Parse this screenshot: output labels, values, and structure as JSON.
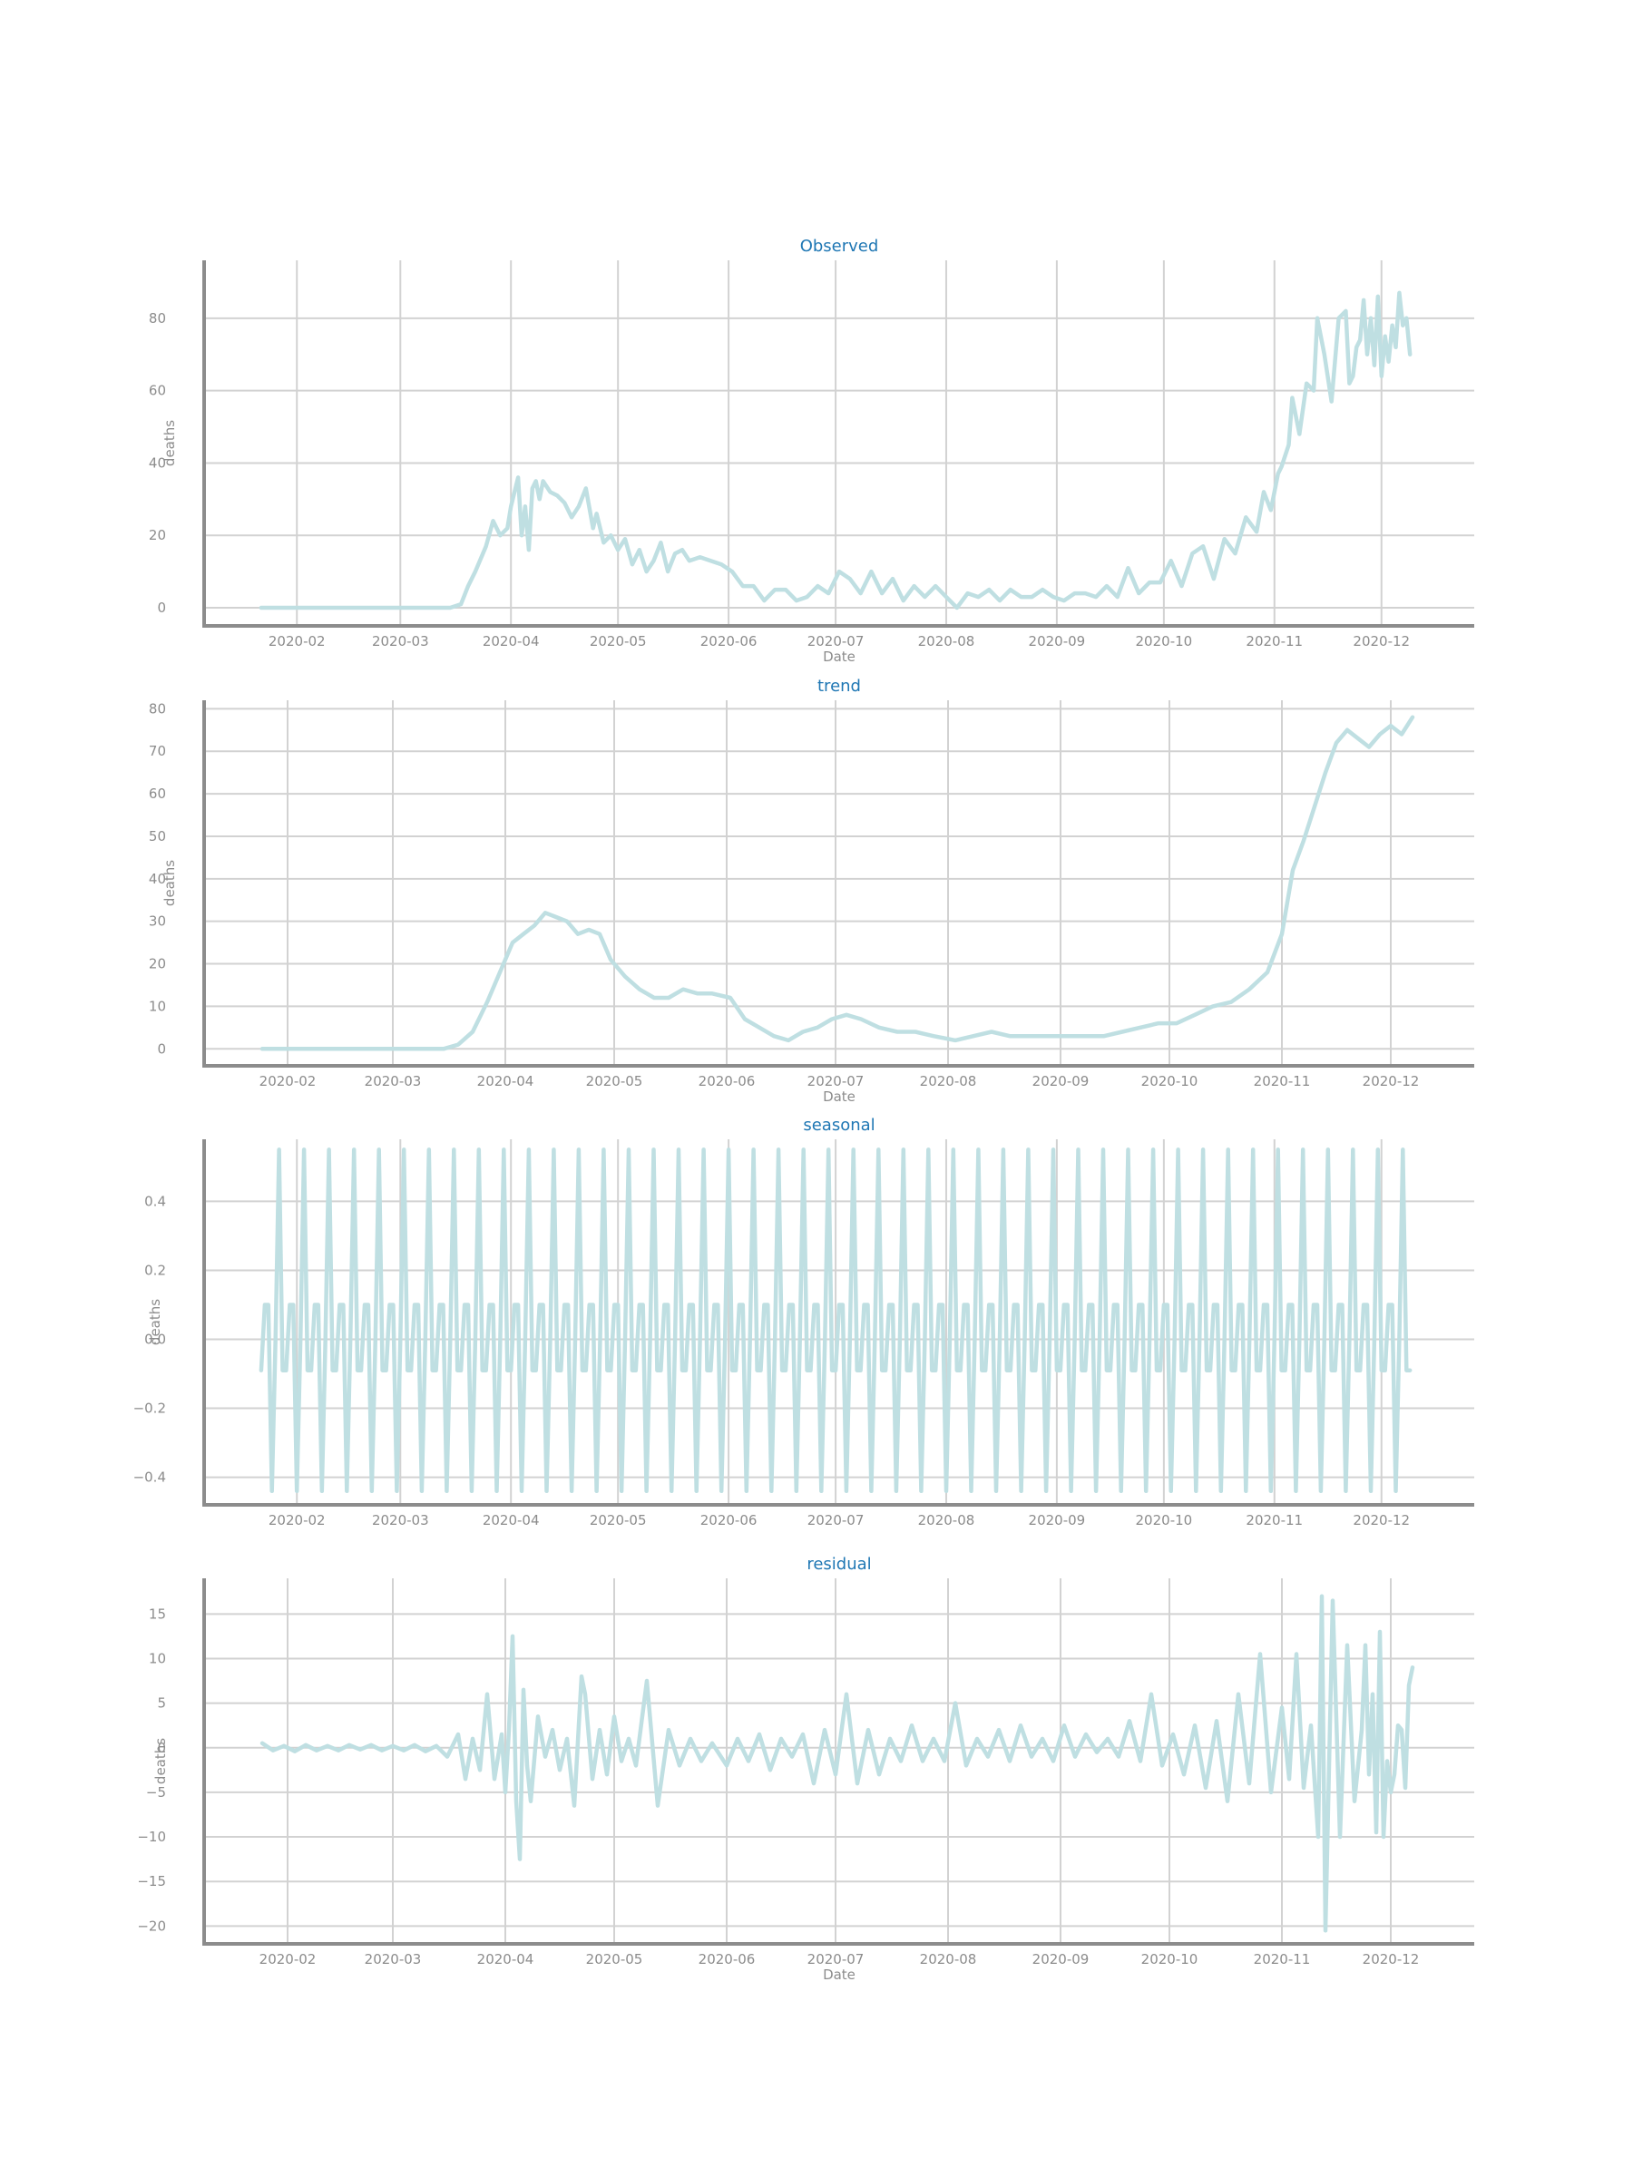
{
  "colors": {
    "series": "#bfdfe2",
    "grid": "#d2d2d2",
    "spine": "#8c8c8c",
    "tick_text": "#8c8c8c",
    "title": "#1f77b4"
  },
  "chart_data": [
    {
      "type": "line",
      "title": "Observed",
      "xlabel": "Date",
      "ylabel": "deaths",
      "xlim": [
        "2020-01-06",
        "2020-12-27"
      ],
      "ylim": [
        -5,
        96
      ],
      "yticks": [
        0,
        20,
        40,
        60,
        80
      ],
      "ytick_labels": [
        "0",
        "20",
        "40",
        "60",
        "80"
      ],
      "xticks": [
        "2020-02-01",
        "2020-03-01",
        "2020-04-01",
        "2020-05-01",
        "2020-06-01",
        "2020-07-01",
        "2020-08-01",
        "2020-09-01",
        "2020-10-01",
        "2020-11-01",
        "2020-12-01"
      ],
      "xtick_labels": [
        "2020-02",
        "2020-03",
        "2020-04",
        "2020-05",
        "2020-06",
        "2020-07",
        "2020-08",
        "2020-09",
        "2020-10",
        "2020-11",
        "2020-12"
      ],
      "grid": true,
      "series": [
        {
          "x": [
            "2020-01-22",
            "2020-03-15",
            "2020-03-18",
            "2020-03-20",
            "2020-03-22",
            "2020-03-25",
            "2020-03-27",
            "2020-03-29",
            "2020-03-31",
            "2020-04-01",
            "2020-04-03",
            "2020-04-04",
            "2020-04-05",
            "2020-04-06",
            "2020-04-07",
            "2020-04-08",
            "2020-04-09",
            "2020-04-10",
            "2020-04-12",
            "2020-04-14",
            "2020-04-16",
            "2020-04-18",
            "2020-04-20",
            "2020-04-22",
            "2020-04-24",
            "2020-04-25",
            "2020-04-27",
            "2020-04-29",
            "2020-05-01",
            "2020-05-03",
            "2020-05-05",
            "2020-05-07",
            "2020-05-09",
            "2020-05-11",
            "2020-05-13",
            "2020-05-15",
            "2020-05-17",
            "2020-05-19",
            "2020-05-21",
            "2020-05-24",
            "2020-05-27",
            "2020-05-30",
            "2020-06-02",
            "2020-06-05",
            "2020-06-08",
            "2020-06-11",
            "2020-06-14",
            "2020-06-17",
            "2020-06-20",
            "2020-06-23",
            "2020-06-26",
            "2020-06-29",
            "2020-07-02",
            "2020-07-05",
            "2020-07-08",
            "2020-07-11",
            "2020-07-14",
            "2020-07-17",
            "2020-07-20",
            "2020-07-23",
            "2020-07-26",
            "2020-07-29",
            "2020-08-01",
            "2020-08-04",
            "2020-08-07",
            "2020-08-10",
            "2020-08-13",
            "2020-08-16",
            "2020-08-19",
            "2020-08-22",
            "2020-08-25",
            "2020-08-28",
            "2020-08-31",
            "2020-09-03",
            "2020-09-06",
            "2020-09-09",
            "2020-09-12",
            "2020-09-15",
            "2020-09-18",
            "2020-09-21",
            "2020-09-24",
            "2020-09-27",
            "2020-09-30",
            "2020-10-03",
            "2020-10-06",
            "2020-10-09",
            "2020-10-12",
            "2020-10-15",
            "2020-10-18",
            "2020-10-21",
            "2020-10-24",
            "2020-10-27",
            "2020-10-29",
            "2020-10-31",
            "2020-11-02",
            "2020-11-03",
            "2020-11-05",
            "2020-11-06",
            "2020-11-08",
            "2020-11-10",
            "2020-11-12",
            "2020-11-13",
            "2020-11-15",
            "2020-11-17",
            "2020-11-19",
            "2020-11-21",
            "2020-11-22",
            "2020-11-23",
            "2020-11-24",
            "2020-11-25",
            "2020-11-26",
            "2020-11-27",
            "2020-11-28",
            "2020-11-29",
            "2020-11-30",
            "2020-12-01",
            "2020-12-02",
            "2020-12-03",
            "2020-12-04",
            "2020-12-05",
            "2020-12-06",
            "2020-12-07",
            "2020-12-08",
            "2020-12-09"
          ],
          "y": [
            0,
            0,
            1,
            6,
            10,
            17,
            24,
            20,
            22,
            28,
            36,
            20,
            28,
            16,
            33,
            35,
            30,
            35,
            32,
            31,
            29,
            25,
            28,
            33,
            22,
            26,
            18,
            20,
            16,
            19,
            12,
            16,
            10,
            13,
            18,
            10,
            15,
            16,
            13,
            14,
            13,
            12,
            10,
            6,
            6,
            2,
            5,
            5,
            2,
            3,
            6,
            4,
            10,
            8,
            4,
            10,
            4,
            8,
            2,
            6,
            3,
            6,
            3,
            0,
            4,
            3,
            5,
            2,
            5,
            3,
            3,
            5,
            3,
            2,
            4,
            4,
            3,
            6,
            3,
            11,
            4,
            7,
            7,
            13,
            6,
            15,
            17,
            8,
            19,
            15,
            25,
            21,
            32,
            27,
            37,
            39,
            45,
            58,
            48,
            62,
            60,
            80,
            70,
            57,
            80,
            82,
            62,
            64,
            72,
            74,
            85,
            70,
            80,
            67,
            86,
            64,
            75,
            68,
            78,
            72,
            87,
            78,
            80,
            70
          ]
        }
      ]
    },
    {
      "type": "line",
      "title": "trend",
      "xlabel": "Date",
      "ylabel": "deaths",
      "xlim": [
        "2020-01-09",
        "2020-12-24"
      ],
      "ylim": [
        -4,
        82
      ],
      "yticks": [
        0,
        10,
        20,
        30,
        40,
        50,
        60,
        70,
        80
      ],
      "ytick_labels": [
        "0",
        "10",
        "20",
        "30",
        "40",
        "50",
        "60",
        "70",
        "80"
      ],
      "xticks": [
        "2020-02-01",
        "2020-03-01",
        "2020-04-01",
        "2020-05-01",
        "2020-06-01",
        "2020-07-01",
        "2020-08-01",
        "2020-09-01",
        "2020-10-01",
        "2020-11-01",
        "2020-12-01"
      ],
      "xtick_labels": [
        "2020-02",
        "2020-03",
        "2020-04",
        "2020-05",
        "2020-06",
        "2020-07",
        "2020-08",
        "2020-09",
        "2020-10",
        "2020-11",
        "2020-12"
      ],
      "grid": true,
      "series": [
        {
          "x": [
            "2020-01-25",
            "2020-03-10",
            "2020-03-15",
            "2020-03-19",
            "2020-03-23",
            "2020-03-27",
            "2020-03-31",
            "2020-04-03",
            "2020-04-06",
            "2020-04-09",
            "2020-04-12",
            "2020-04-15",
            "2020-04-18",
            "2020-04-21",
            "2020-04-24",
            "2020-04-27",
            "2020-04-30",
            "2020-05-04",
            "2020-05-08",
            "2020-05-12",
            "2020-05-16",
            "2020-05-20",
            "2020-05-24",
            "2020-05-28",
            "2020-06-02",
            "2020-06-06",
            "2020-06-10",
            "2020-06-14",
            "2020-06-18",
            "2020-06-22",
            "2020-06-26",
            "2020-06-30",
            "2020-07-04",
            "2020-07-08",
            "2020-07-13",
            "2020-07-18",
            "2020-07-23",
            "2020-07-28",
            "2020-08-03",
            "2020-08-08",
            "2020-08-13",
            "2020-08-18",
            "2020-08-23",
            "2020-08-28",
            "2020-09-03",
            "2020-09-08",
            "2020-09-13",
            "2020-09-18",
            "2020-09-23",
            "2020-09-28",
            "2020-10-03",
            "2020-10-08",
            "2020-10-13",
            "2020-10-18",
            "2020-10-23",
            "2020-10-28",
            "2020-11-01",
            "2020-11-04",
            "2020-11-07",
            "2020-11-10",
            "2020-11-13",
            "2020-11-16",
            "2020-11-19",
            "2020-11-22",
            "2020-11-25",
            "2020-11-28",
            "2020-12-01",
            "2020-12-04",
            "2020-12-07"
          ],
          "y": [
            0,
            0,
            0,
            1,
            4,
            11,
            19,
            25,
            27,
            29,
            32,
            31,
            30,
            27,
            28,
            27,
            21,
            17,
            14,
            12,
            12,
            14,
            13,
            13,
            12,
            7,
            5,
            3,
            2,
            4,
            5,
            7,
            8,
            7,
            5,
            4,
            4,
            3,
            2,
            3,
            4,
            3,
            3,
            3,
            3,
            3,
            3,
            4,
            5,
            6,
            6,
            8,
            10,
            11,
            14,
            18,
            27,
            42,
            49,
            57,
            65,
            72,
            75,
            73,
            71,
            74,
            76,
            74,
            78
          ]
        }
      ]
    },
    {
      "type": "line",
      "title": "seasonal",
      "xlabel": "Date",
      "ylabel": "deaths",
      "xlim": [
        "2020-01-06",
        "2020-12-27"
      ],
      "ylim": [
        -0.48,
        0.58
      ],
      "yticks": [
        -0.4,
        -0.2,
        0.0,
        0.2,
        0.4
      ],
      "ytick_labels": [
        "−0.4",
        "−0.2",
        "0.0",
        "0.2",
        "0.4"
      ],
      "xticks": [
        "2020-02-01",
        "2020-03-01",
        "2020-04-01",
        "2020-05-01",
        "2020-06-01",
        "2020-07-01",
        "2020-08-01",
        "2020-09-01",
        "2020-10-01",
        "2020-11-01",
        "2020-12-01"
      ],
      "xtick_labels": [
        "2020-02",
        "2020-03",
        "2020-04",
        "2020-05",
        "2020-06",
        "2020-07",
        "2020-08",
        "2020-09",
        "2020-10",
        "2020-11",
        "2020-12"
      ],
      "grid": true,
      "start_date": "2020-01-22",
      "end_date": "2020-12-09",
      "weekly_pattern": [
        -0.09,
        0.1,
        0.1,
        -0.44,
        0.0,
        0.55,
        -0.09
      ],
      "series": []
    },
    {
      "type": "line",
      "title": "residual",
      "xlabel": "Date",
      "ylabel": "deaths",
      "xlim": [
        "2020-01-09",
        "2020-12-24"
      ],
      "ylim": [
        -22,
        19
      ],
      "yticks": [
        -20,
        -15,
        -10,
        -5,
        0,
        5,
        10,
        15
      ],
      "ytick_labels": [
        "−20",
        "−15",
        "−10",
        "−5",
        "0",
        "5",
        "10",
        "15"
      ],
      "xticks": [
        "2020-02-01",
        "2020-03-01",
        "2020-04-01",
        "2020-05-01",
        "2020-06-01",
        "2020-07-01",
        "2020-08-01",
        "2020-09-01",
        "2020-10-01",
        "2020-11-01",
        "2020-12-01"
      ],
      "xtick_labels": [
        "2020-02",
        "2020-03",
        "2020-04",
        "2020-05",
        "2020-06",
        "2020-07",
        "2020-08",
        "2020-09",
        "2020-10",
        "2020-11",
        "2020-12"
      ],
      "grid": true,
      "series": [
        {
          "x": [
            "2020-01-25",
            "2020-01-28",
            "2020-01-31",
            "2020-02-03",
            "2020-02-06",
            "2020-02-09",
            "2020-02-12",
            "2020-02-15",
            "2020-02-18",
            "2020-02-21",
            "2020-02-24",
            "2020-02-27",
            "2020-03-01",
            "2020-03-04",
            "2020-03-07",
            "2020-03-10",
            "2020-03-13",
            "2020-03-16",
            "2020-03-19",
            "2020-03-21",
            "2020-03-23",
            "2020-03-25",
            "2020-03-27",
            "2020-03-29",
            "2020-03-31",
            "2020-04-01",
            "2020-04-02",
            "2020-04-03",
            "2020-04-04",
            "2020-04-05",
            "2020-04-06",
            "2020-04-07",
            "2020-04-08",
            "2020-04-10",
            "2020-04-12",
            "2020-04-14",
            "2020-04-16",
            "2020-04-18",
            "2020-04-20",
            "2020-04-22",
            "2020-04-23",
            "2020-04-25",
            "2020-04-27",
            "2020-04-29",
            "2020-05-01",
            "2020-05-03",
            "2020-05-05",
            "2020-05-07",
            "2020-05-10",
            "2020-05-13",
            "2020-05-16",
            "2020-05-19",
            "2020-05-22",
            "2020-05-25",
            "2020-05-28",
            "2020-06-01",
            "2020-06-04",
            "2020-06-07",
            "2020-06-10",
            "2020-06-13",
            "2020-06-16",
            "2020-06-19",
            "2020-06-22",
            "2020-06-25",
            "2020-06-28",
            "2020-07-01",
            "2020-07-04",
            "2020-07-07",
            "2020-07-10",
            "2020-07-13",
            "2020-07-16",
            "2020-07-19",
            "2020-07-22",
            "2020-07-25",
            "2020-07-28",
            "2020-07-31",
            "2020-08-03",
            "2020-08-06",
            "2020-08-09",
            "2020-08-12",
            "2020-08-15",
            "2020-08-18",
            "2020-08-21",
            "2020-08-24",
            "2020-08-27",
            "2020-08-30",
            "2020-09-02",
            "2020-09-05",
            "2020-09-08",
            "2020-09-11",
            "2020-09-14",
            "2020-09-17",
            "2020-09-20",
            "2020-09-23",
            "2020-09-26",
            "2020-09-29",
            "2020-10-02",
            "2020-10-05",
            "2020-10-08",
            "2020-10-11",
            "2020-10-14",
            "2020-10-17",
            "2020-10-20",
            "2020-10-23",
            "2020-10-26",
            "2020-10-29",
            "2020-11-01",
            "2020-11-03",
            "2020-11-05",
            "2020-11-07",
            "2020-11-09",
            "2020-11-11",
            "2020-11-12",
            "2020-11-13",
            "2020-11-15",
            "2020-11-17",
            "2020-11-19",
            "2020-11-21",
            "2020-11-23",
            "2020-11-24",
            "2020-11-25",
            "2020-11-26",
            "2020-11-27",
            "2020-11-28",
            "2020-11-29",
            "2020-11-30",
            "2020-12-01",
            "2020-12-02",
            "2020-12-03",
            "2020-12-04",
            "2020-12-05",
            "2020-12-06",
            "2020-12-07"
          ],
          "y": [
            0.5,
            -0.3,
            0.2,
            -0.4,
            0.3,
            -0.3,
            0.2,
            -0.3,
            0.3,
            -0.2,
            0.3,
            -0.3,
            0.2,
            -0.3,
            0.3,
            -0.4,
            0.2,
            -1.0,
            1.5,
            -3.5,
            1.0,
            -2.5,
            6.0,
            -3.5,
            1.5,
            -5.0,
            2.0,
            12.5,
            -6.0,
            -12.5,
            6.5,
            -2.0,
            -6.0,
            3.5,
            -1.0,
            2.0,
            -2.5,
            1.0,
            -6.5,
            8.0,
            6.0,
            -3.5,
            2.0,
            -3.0,
            3.5,
            -1.5,
            1.0,
            -2.0,
            7.5,
            -6.5,
            2.0,
            -2.0,
            1.0,
            -1.5,
            0.5,
            -2.0,
            1.0,
            -1.5,
            1.5,
            -2.5,
            1.0,
            -1.0,
            1.5,
            -4.0,
            2.0,
            -3.0,
            6.0,
            -4.0,
            2.0,
            -3.0,
            1.0,
            -1.5,
            2.5,
            -1.5,
            1.0,
            -1.5,
            5.0,
            -2.0,
            1.0,
            -1.0,
            2.0,
            -1.5,
            2.5,
            -1.0,
            1.0,
            -1.5,
            2.5,
            -1.0,
            1.5,
            -0.5,
            1.0,
            -1.0,
            3.0,
            -1.5,
            6.0,
            -2.0,
            1.5,
            -3.0,
            2.5,
            -4.5,
            3.0,
            -6.0,
            6.0,
            -4.0,
            10.5,
            -5.0,
            4.5,
            -3.5,
            10.5,
            -4.5,
            2.5,
            -10.0,
            17.0,
            -20.5,
            16.5,
            -10.0,
            11.5,
            -6.0,
            2.0,
            11.5,
            -3.0,
            6.0,
            -9.5,
            13.0,
            -10.0,
            -1.5,
            -5.0,
            -3.0,
            2.5,
            2.0,
            -4.5,
            7.0,
            9.0
          ]
        }
      ]
    }
  ]
}
